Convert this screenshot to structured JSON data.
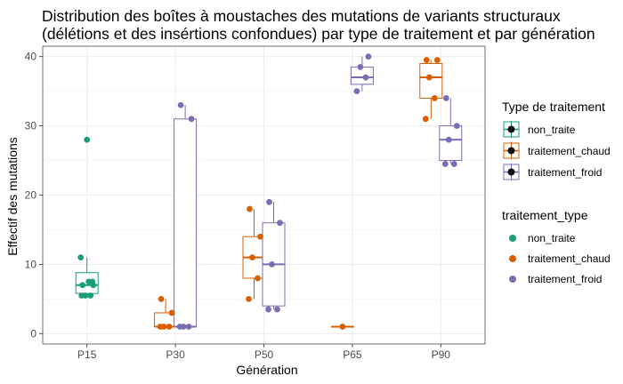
{
  "chart_data": {
    "type": "box",
    "title_lines": [
      "Distribution des boîtes à moustaches des mutations de variants structuraux",
      "(délétions et des insértions confondues)   par type de traitement et par génération"
    ],
    "xlabel": "Génération",
    "ylabel": "Effectif des mutations",
    "categories": [
      "P15",
      "P30",
      "P50",
      "P65",
      "P90"
    ],
    "ylim": [
      -1.5,
      41.5
    ],
    "yticks": [
      0,
      10,
      20,
      30,
      40
    ],
    "grid": true,
    "legend_placement": "right",
    "legend_box_title": "Type de traitement",
    "legend_point_title": "traitement_type",
    "series": [
      {
        "name": "non_traite",
        "color": "#1b9e77",
        "boxes": [
          {
            "category": "P15",
            "min": 5.5,
            "q1": 5.8,
            "median": 7,
            "q3": 8.8,
            "max": 11,
            "outliers": [
              28
            ],
            "points": [
              5.5,
              5.5,
              5.5,
              7,
              7,
              7.5,
              7.5,
              11,
              28
            ]
          }
        ]
      },
      {
        "name": "traitement_chaud",
        "color": "#d95f02",
        "boxes": [
          {
            "category": "P30",
            "min": 1,
            "q1": 1,
            "median": 1,
            "q3": 3,
            "max": 5,
            "outliers": [],
            "points": [
              1,
              1,
              1,
              3,
              5
            ]
          },
          {
            "category": "P50",
            "min": 5,
            "q1": 8,
            "median": 11,
            "q3": 14,
            "max": 18,
            "outliers": [],
            "points": [
              5,
              8,
              11,
              14,
              18
            ]
          },
          {
            "category": "P65",
            "min": 1,
            "q1": 1,
            "median": 1,
            "q3": 1,
            "max": 1,
            "outliers": [],
            "points": [
              1
            ]
          },
          {
            "category": "P90",
            "min": 31,
            "q1": 34,
            "median": 37,
            "q3": 39,
            "max": 39.5,
            "outliers": [],
            "points": [
              31,
              34,
              37,
              39.5,
              39.5
            ]
          }
        ]
      },
      {
        "name": "traitement_froid",
        "color": "#7570b3",
        "boxes": [
          {
            "category": "P30",
            "min": 1,
            "q1": 1,
            "median": 1,
            "q3": 31,
            "max": 33,
            "outliers": [],
            "points": [
              1,
              1,
              1,
              31,
              33
            ]
          },
          {
            "category": "P50",
            "min": 3.5,
            "q1": 4,
            "median": 10,
            "q3": 16,
            "max": 19,
            "outliers": [],
            "points": [
              3.5,
              3.5,
              10,
              16,
              19
            ]
          },
          {
            "category": "P65",
            "min": 35,
            "q1": 36,
            "median": 37,
            "q3": 38.5,
            "max": 40,
            "outliers": [],
            "points": [
              35,
              37,
              38.5,
              40
            ]
          },
          {
            "category": "P90",
            "min": 24.5,
            "q1": 25,
            "median": 28,
            "q3": 30,
            "max": 34,
            "outliers": [],
            "points": [
              24.5,
              24.5,
              28,
              30,
              34
            ]
          }
        ]
      }
    ]
  }
}
